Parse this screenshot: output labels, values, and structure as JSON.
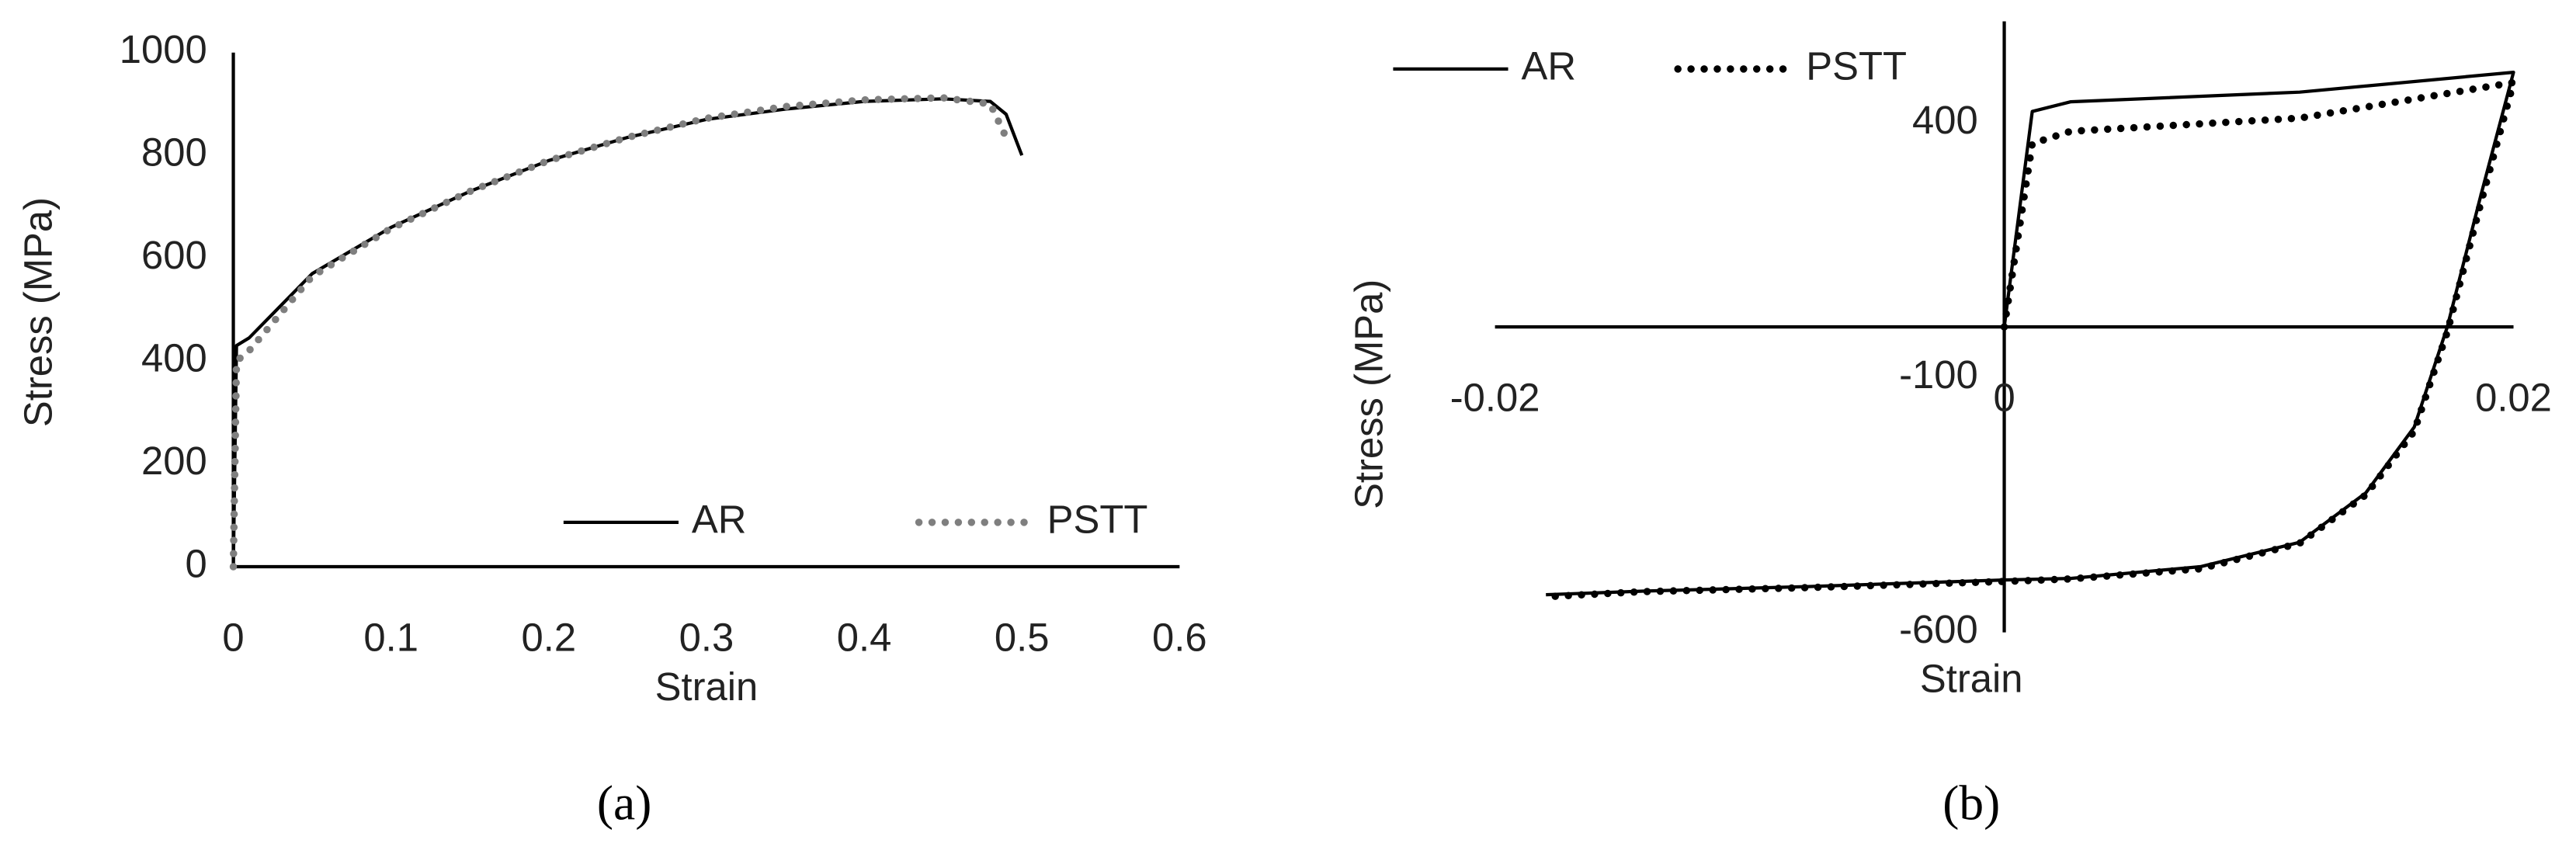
{
  "chart_data": [
    {
      "type": "line",
      "caption": "(a)",
      "x_label": "Strain",
      "y_label": "Stress (MPa)",
      "x": [
        0,
        0.002,
        0.01,
        0.05,
        0.1,
        0.15,
        0.2,
        0.25,
        0.3,
        0.35,
        0.4,
        0.45,
        0.48,
        0.49,
        0.5
      ],
      "series": [
        {
          "name": "AR",
          "color": "#000000",
          "style": "solid",
          "values": [
            0,
            430,
            445,
            570,
            660,
            730,
            790,
            835,
            870,
            890,
            905,
            910,
            905,
            880,
            800
          ]
        },
        {
          "name": "PSTT",
          "color": "#7f7f7f",
          "style": "dotted",
          "values": [
            0,
            400,
            420,
            565,
            658,
            730,
            790,
            835,
            872,
            895,
            908,
            912,
            900,
            835,
            null
          ]
        }
      ],
      "xlim": [
        0,
        0.6
      ],
      "xticks": [
        0,
        0.1,
        0.2,
        0.3,
        0.4,
        0.5,
        0.6
      ],
      "ylim": [
        0,
        1000
      ],
      "yticks": [
        0,
        200,
        400,
        600,
        800,
        1000
      ],
      "grid": false,
      "legend": "bottom-right"
    },
    {
      "type": "line",
      "caption": "(b)",
      "x_label": "Strain",
      "y_label": "Stress (MPa)",
      "x": [
        0,
        0.0011,
        0.0026,
        0.0116,
        0.02,
        0.0187,
        0.0174,
        0.0161,
        0.0142,
        0.0116,
        0.0077,
        0.0026,
        0,
        -0.0077,
        -0.0142,
        -0.018
      ],
      "series": [
        {
          "name": "AR",
          "color": "#000000",
          "style": "solid",
          "values": [
            0,
            423,
            442,
            461,
            500,
            255,
            0,
            -197,
            -326,
            -423,
            -471,
            -494,
            -497,
            -510,
            -519,
            -526
          ]
        },
        {
          "name": "PSTT",
          "color": "#000000",
          "style": "dotted",
          "values": [
            0,
            360,
            384,
            410,
            480,
            240,
            -10,
            -205,
            -330,
            -425,
            -475,
            -495,
            -500,
            -512,
            -520,
            -530
          ]
        }
      ],
      "xlim": [
        -0.02,
        0.02
      ],
      "xticks": [
        -0.02,
        0,
        0.02
      ],
      "ylim": [
        -600,
        600
      ],
      "yticks": [
        -600,
        -100,
        400
      ],
      "grid": false,
      "legend": "top-left"
    }
  ]
}
